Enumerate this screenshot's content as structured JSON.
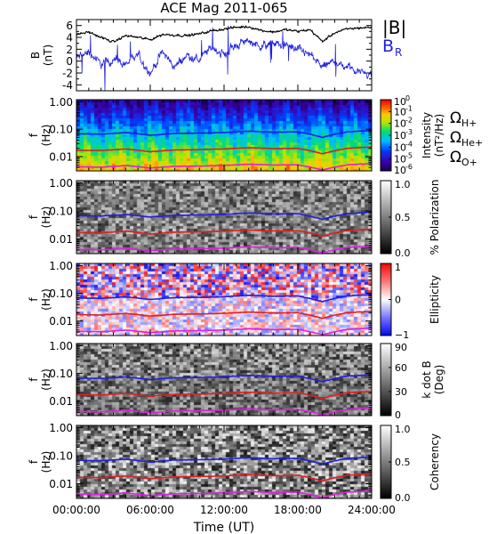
{
  "title": "ACE Mag 2011-065",
  "time_axis": {
    "label": "Time (UT)",
    "ticks": [
      "00:00:00",
      "06:00:00",
      "12:00:00",
      "18:00:00",
      "24:00:00"
    ],
    "range_hours": [
      0,
      24
    ]
  },
  "mag_panel": {
    "ylabel_line1": "B",
    "ylabel_line2": "(nT)",
    "yticks": [
      "6",
      "4",
      "2",
      "0",
      "-2",
      "-4"
    ],
    "ylim": [
      -5,
      7
    ],
    "legend": [
      {
        "label": "|B|",
        "color": "#000000"
      },
      {
        "label": "B",
        "sub": "R",
        "color": "#1f1fe0"
      }
    ]
  },
  "freq_axis": {
    "ylabel_line1": "f",
    "ylabel_line2": "(Hz)",
    "ticks": [
      "1.00",
      "0.10",
      "0.01"
    ],
    "scale": "log",
    "ylim": [
      0.003,
      1.2
    ]
  },
  "spectrogram_panels": [
    {
      "id": "intensity",
      "colormap": "rainbow",
      "cbar_label_line1": "Intensity",
      "cbar_label_line2": "(nT²/Hz)",
      "cbar_ticks": [
        {
          "base": "10",
          "exp": "0"
        },
        {
          "base": "10",
          "exp": "-1"
        },
        {
          "base": "10",
          "exp": "-2"
        },
        {
          "base": "10",
          "exp": "-3"
        },
        {
          "base": "10",
          "exp": "-4"
        },
        {
          "base": "10",
          "exp": "-5"
        },
        {
          "base": "10",
          "exp": "-6"
        }
      ],
      "side_legend": [
        {
          "label": "Ω",
          "sub": "H+",
          "color": "#1f1fe0"
        },
        {
          "label": "Ω",
          "sub": "He+",
          "color": "#e01f1f"
        },
        {
          "label": "Ω",
          "sub": "O+",
          "color": "#e020e0"
        }
      ]
    },
    {
      "id": "polarization",
      "colormap": "gray",
      "cbar_label_line1": "% Polarization",
      "cbar_label_line2": "",
      "cbar_ticks": [
        "1.0",
        "0.5",
        "0.0"
      ]
    },
    {
      "id": "ellipticity",
      "colormap": "bwr",
      "cbar_label_line1": "Ellipticity",
      "cbar_label_line2": "",
      "cbar_ticks": [
        "1",
        "0",
        "−1"
      ]
    },
    {
      "id": "kdotb",
      "colormap": "gray",
      "cbar_label_line1": "k dot B",
      "cbar_label_line2": "(Deg)",
      "cbar_ticks": [
        "90",
        "60",
        "30",
        "0"
      ]
    },
    {
      "id": "coherency",
      "colormap": "gray",
      "cbar_label_line1": "Coherency",
      "cbar_label_line2": "",
      "cbar_ticks": [
        "1.0",
        "0.5",
        "0.0"
      ]
    }
  ],
  "chart_data": {
    "type": "line",
    "title": "ACE Mag 2011-065",
    "xlabel": "Time (UT)",
    "ylabel": "B (nT)",
    "x": [
      0,
      1,
      2,
      3,
      4,
      5,
      6,
      7,
      8,
      9,
      10,
      11,
      12,
      13,
      14,
      15,
      16,
      17,
      18,
      19,
      20,
      21,
      22,
      23,
      24
    ],
    "ylim": [
      -5,
      7
    ],
    "series": [
      {
        "name": "|B|",
        "color": "#000000",
        "values": [
          4.5,
          4.9,
          4.0,
          3.2,
          4.3,
          4.0,
          3.6,
          4.5,
          4.4,
          4.3,
          4.6,
          5.1,
          5.4,
          5.7,
          5.8,
          5.2,
          4.9,
          5.3,
          5.0,
          5.3,
          3.3,
          4.8,
          5.4,
          5.6,
          5.7
        ]
      },
      {
        "name": "B_R",
        "color": "#1f1fe0",
        "values": [
          0.5,
          1.5,
          -0.5,
          0.2,
          -0.5,
          1.0,
          -2.0,
          1.5,
          -1.0,
          1.0,
          0.2,
          2.5,
          1.0,
          2.8,
          3.5,
          2.5,
          3.0,
          2.5,
          2.0,
          1.0,
          -1.0,
          0.0,
          -1.0,
          -1.5,
          -2.3
        ]
      }
    ],
    "cyclotron_frequencies_hz": {
      "x": [
        0,
        2,
        4,
        6,
        8,
        10,
        12,
        14,
        16,
        18,
        20,
        22,
        24
      ],
      "series": [
        {
          "name": "ΩH+",
          "color": "#1f1fe0",
          "values": [
            0.068,
            0.066,
            0.075,
            0.06,
            0.07,
            0.072,
            0.075,
            0.085,
            0.078,
            0.08,
            0.05,
            0.08,
            0.09
          ]
        },
        {
          "name": "ΩHe+",
          "color": "#e01f1f",
          "values": [
            0.017,
            0.0165,
            0.019,
            0.015,
            0.0175,
            0.018,
            0.019,
            0.021,
            0.0195,
            0.02,
            0.0125,
            0.02,
            0.0225
          ]
        },
        {
          "name": "ΩO+",
          "color": "#e020e0",
          "values": [
            0.0043,
            0.0041,
            0.0047,
            0.0038,
            0.0044,
            0.0045,
            0.0047,
            0.0053,
            0.0049,
            0.005,
            0.0032,
            0.005,
            0.0056
          ]
        }
      ]
    }
  }
}
